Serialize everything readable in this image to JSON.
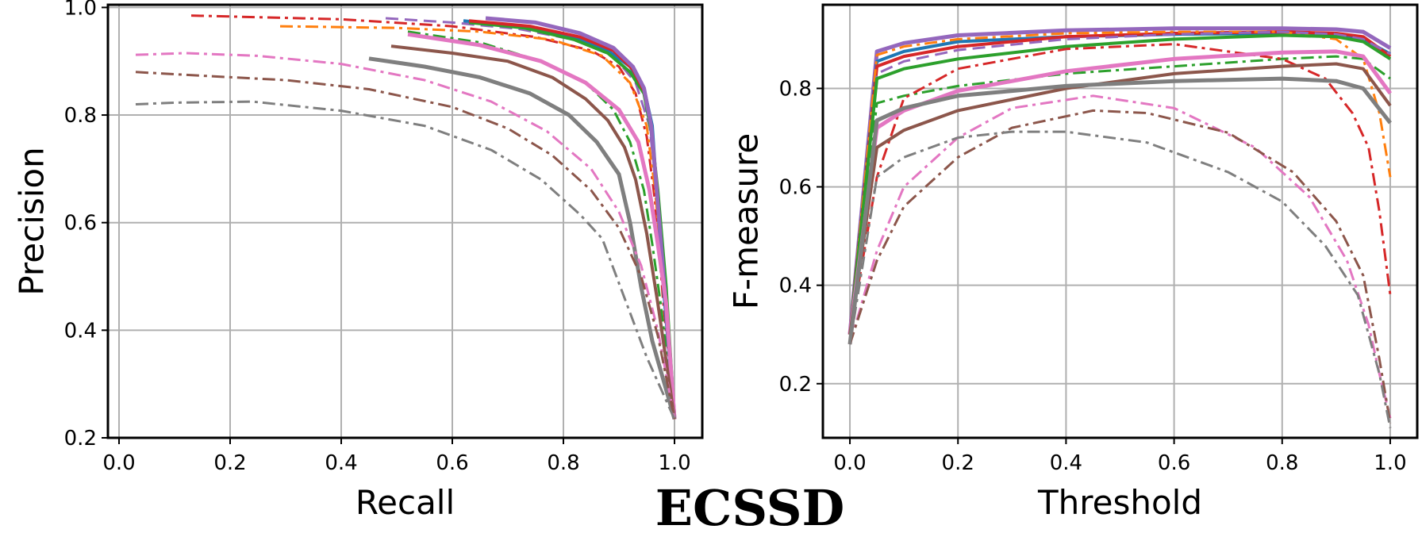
{
  "caption": "ECSSD",
  "chart_data": [
    {
      "type": "line",
      "xlabel": "Recall",
      "ylabel": "Precision",
      "xlim": [
        -0.02,
        1.05
      ],
      "ylim": [
        0.2,
        1.005
      ],
      "xticks": [
        0.0,
        0.2,
        0.4,
        0.6,
        0.8,
        1.0
      ],
      "xtick_labels": [
        "0.0",
        "0.2",
        "0.4",
        "0.6",
        "0.8",
        "1.0"
      ],
      "yticks": [
        0.2,
        0.4,
        0.6,
        0.8,
        1.0
      ],
      "ytick_labels": [
        "0.2",
        "0.4",
        "0.6",
        "0.8",
        "1.0"
      ],
      "grid": true,
      "series": [
        {
          "color": "#d62728",
          "dash": "dashdot",
          "width": 3,
          "x": [
            0.13,
            0.4,
            0.6,
            0.75,
            0.85,
            0.9,
            0.93,
            0.95,
            0.965,
            0.98,
            1.0
          ],
          "y": [
            0.985,
            0.978,
            0.965,
            0.945,
            0.92,
            0.89,
            0.84,
            0.76,
            0.64,
            0.45,
            0.235
          ]
        },
        {
          "color": "#ff7f0e",
          "dash": "dashdot",
          "width": 3,
          "x": [
            0.29,
            0.5,
            0.65,
            0.78,
            0.87,
            0.92,
            0.95,
            0.965,
            0.98,
            1.0
          ],
          "y": [
            0.965,
            0.962,
            0.955,
            0.94,
            0.91,
            0.86,
            0.78,
            0.66,
            0.48,
            0.235
          ]
        },
        {
          "color": "#9467bd",
          "dash": "dashed",
          "width": 3,
          "x": [
            0.48,
            0.6,
            0.72,
            0.82,
            0.89,
            0.93,
            0.955,
            0.97,
            0.985,
            1.0
          ],
          "y": [
            0.98,
            0.972,
            0.96,
            0.94,
            0.91,
            0.86,
            0.78,
            0.64,
            0.45,
            0.235
          ]
        },
        {
          "color": "#2ca02c",
          "dash": "dashdot",
          "width": 3,
          "x": [
            0.52,
            0.65,
            0.76,
            0.84,
            0.89,
            0.92,
            0.945,
            0.96,
            0.975,
            1.0
          ],
          "y": [
            0.955,
            0.935,
            0.9,
            0.86,
            0.81,
            0.75,
            0.66,
            0.56,
            0.45,
            0.235
          ]
        },
        {
          "color": "#1f77b4",
          "dash": "solid",
          "width": 4,
          "x": [
            0.62,
            0.72,
            0.82,
            0.88,
            0.92,
            0.945,
            0.96,
            0.968,
            0.98,
            1.0
          ],
          "y": [
            0.975,
            0.965,
            0.945,
            0.92,
            0.89,
            0.85,
            0.78,
            0.66,
            0.48,
            0.235
          ]
        },
        {
          "color": "#2ca02c",
          "dash": "solid",
          "width": 4,
          "x": [
            0.63,
            0.73,
            0.82,
            0.88,
            0.92,
            0.945,
            0.958,
            0.97,
            0.985,
            1.0
          ],
          "y": [
            0.972,
            0.962,
            0.94,
            0.915,
            0.88,
            0.84,
            0.77,
            0.66,
            0.48,
            0.235
          ]
        },
        {
          "color": "#d62728",
          "dash": "solid",
          "width": 4,
          "x": [
            0.63,
            0.74,
            0.83,
            0.89,
            0.925,
            0.945,
            0.958,
            0.968,
            0.98,
            1.0
          ],
          "y": [
            0.975,
            0.965,
            0.945,
            0.92,
            0.885,
            0.845,
            0.78,
            0.67,
            0.5,
            0.235
          ]
        },
        {
          "color": "#9467bd",
          "dash": "solid",
          "width": 5,
          "x": [
            0.66,
            0.75,
            0.83,
            0.89,
            0.925,
            0.945,
            0.958,
            0.968,
            0.982,
            1.0
          ],
          "y": [
            0.98,
            0.972,
            0.952,
            0.925,
            0.89,
            0.85,
            0.78,
            0.66,
            0.48,
            0.235
          ]
        },
        {
          "color": "#e377c2",
          "dash": "solid",
          "width": 5,
          "x": [
            0.52,
            0.65,
            0.76,
            0.84,
            0.9,
            0.935,
            0.955,
            0.97,
            0.985,
            1.0
          ],
          "y": [
            0.95,
            0.93,
            0.9,
            0.86,
            0.81,
            0.75,
            0.66,
            0.56,
            0.45,
            0.235
          ]
        },
        {
          "color": "#8c564b",
          "dash": "solid",
          "width": 4,
          "x": [
            0.49,
            0.6,
            0.7,
            0.78,
            0.84,
            0.88,
            0.91,
            0.93,
            0.95,
            0.97,
            1.0
          ],
          "y": [
            0.928,
            0.915,
            0.9,
            0.87,
            0.83,
            0.79,
            0.74,
            0.68,
            0.58,
            0.45,
            0.235
          ]
        },
        {
          "color": "#7f7f7f",
          "dash": "solid",
          "width": 5,
          "x": [
            0.45,
            0.55,
            0.65,
            0.74,
            0.81,
            0.86,
            0.9,
            0.92,
            0.94,
            0.96,
            1.0
          ],
          "y": [
            0.905,
            0.89,
            0.87,
            0.84,
            0.8,
            0.75,
            0.69,
            0.6,
            0.48,
            0.38,
            0.235
          ]
        },
        {
          "color": "#e377c2",
          "dash": "dashdot",
          "width": 3,
          "x": [
            0.03,
            0.12,
            0.25,
            0.4,
            0.55,
            0.67,
            0.77,
            0.85,
            0.9,
            0.94,
            0.97,
            1.0
          ],
          "y": [
            0.912,
            0.915,
            0.91,
            0.895,
            0.865,
            0.825,
            0.77,
            0.7,
            0.62,
            0.52,
            0.4,
            0.235
          ]
        },
        {
          "color": "#8c564b",
          "dash": "dashdot",
          "width": 3,
          "x": [
            0.03,
            0.15,
            0.3,
            0.45,
            0.6,
            0.7,
            0.78,
            0.85,
            0.9,
            0.94,
            0.97,
            1.0
          ],
          "y": [
            0.88,
            0.873,
            0.865,
            0.848,
            0.815,
            0.775,
            0.725,
            0.66,
            0.59,
            0.5,
            0.39,
            0.235
          ]
        },
        {
          "color": "#7f7f7f",
          "dash": "dashdot",
          "width": 3,
          "x": [
            0.03,
            0.1,
            0.24,
            0.4,
            0.55,
            0.67,
            0.76,
            0.83,
            0.87,
            0.91,
            0.95,
            1.0
          ],
          "y": [
            0.82,
            0.823,
            0.825,
            0.808,
            0.78,
            0.735,
            0.68,
            0.615,
            0.57,
            0.46,
            0.35,
            0.235
          ]
        }
      ]
    },
    {
      "type": "line",
      "xlabel": "Threshold",
      "ylabel": "F-measure",
      "xlim": [
        -0.05,
        1.05
      ],
      "ylim": [
        0.09,
        0.97
      ],
      "xticks": [
        0.0,
        0.2,
        0.4,
        0.6,
        0.8,
        1.0
      ],
      "xtick_labels": [
        "0.0",
        "0.2",
        "0.4",
        "0.6",
        "0.8",
        "1.0"
      ],
      "yticks": [
        0.2,
        0.4,
        0.6,
        0.8
      ],
      "ytick_labels": [
        "0.2",
        "0.4",
        "0.6",
        "0.8"
      ],
      "grid": true,
      "series": [
        {
          "color": "#9467bd",
          "dash": "solid",
          "width": 5,
          "x": [
            0.0,
            0.05,
            0.1,
            0.2,
            0.4,
            0.6,
            0.8,
            0.9,
            0.95,
            1.0
          ],
          "y": [
            0.3,
            0.875,
            0.892,
            0.908,
            0.918,
            0.922,
            0.922,
            0.92,
            0.915,
            0.882
          ]
        },
        {
          "color": "#1f77b4",
          "dash": "solid",
          "width": 4,
          "x": [
            0.0,
            0.05,
            0.1,
            0.2,
            0.4,
            0.6,
            0.8,
            0.9,
            0.95,
            1.0
          ],
          "y": [
            0.3,
            0.855,
            0.875,
            0.895,
            0.905,
            0.91,
            0.912,
            0.908,
            0.9,
            0.87
          ]
        },
        {
          "color": "#d62728",
          "dash": "solid",
          "width": 4,
          "x": [
            0.0,
            0.05,
            0.1,
            0.2,
            0.4,
            0.6,
            0.8,
            0.9,
            0.95,
            1.0
          ],
          "y": [
            0.3,
            0.845,
            0.865,
            0.885,
            0.905,
            0.912,
            0.915,
            0.912,
            0.905,
            0.865
          ]
        },
        {
          "color": "#ff7f0e",
          "dash": "dashdot",
          "width": 3,
          "x": [
            0.0,
            0.05,
            0.1,
            0.2,
            0.4,
            0.6,
            0.8,
            0.9,
            0.95,
            0.98,
            1.0
          ],
          "y": [
            0.3,
            0.868,
            0.885,
            0.9,
            0.912,
            0.915,
            0.915,
            0.9,
            0.86,
            0.75,
            0.62
          ]
        },
        {
          "color": "#9467bd",
          "dash": "dashed",
          "width": 3,
          "x": [
            0.0,
            0.05,
            0.1,
            0.2,
            0.4,
            0.6,
            0.8,
            0.9,
            0.95,
            1.0
          ],
          "y": [
            0.3,
            0.83,
            0.855,
            0.878,
            0.9,
            0.91,
            0.915,
            0.91,
            0.9,
            0.87
          ]
        },
        {
          "color": "#2ca02c",
          "dash": "solid",
          "width": 4,
          "x": [
            0.0,
            0.05,
            0.1,
            0.2,
            0.4,
            0.6,
            0.8,
            0.9,
            0.95,
            1.0
          ],
          "y": [
            0.3,
            0.82,
            0.84,
            0.86,
            0.885,
            0.9,
            0.908,
            0.905,
            0.895,
            0.86
          ]
        },
        {
          "color": "#2ca02c",
          "dash": "dashdot",
          "width": 3,
          "x": [
            0.0,
            0.05,
            0.1,
            0.2,
            0.4,
            0.6,
            0.8,
            0.9,
            0.95,
            1.0
          ],
          "y": [
            0.3,
            0.77,
            0.785,
            0.805,
            0.83,
            0.845,
            0.86,
            0.865,
            0.86,
            0.82
          ]
        },
        {
          "color": "#d62728",
          "dash": "dashdot",
          "width": 3,
          "x": [
            0.0,
            0.05,
            0.1,
            0.2,
            0.4,
            0.6,
            0.8,
            0.88,
            0.93,
            0.96,
            0.98,
            1.0
          ],
          "y": [
            0.3,
            0.62,
            0.78,
            0.84,
            0.88,
            0.89,
            0.86,
            0.82,
            0.75,
            0.68,
            0.55,
            0.38
          ]
        },
        {
          "color": "#e377c2",
          "dash": "solid",
          "width": 5,
          "x": [
            0.0,
            0.05,
            0.1,
            0.2,
            0.4,
            0.6,
            0.8,
            0.9,
            0.95,
            1.0
          ],
          "y": [
            0.3,
            0.72,
            0.755,
            0.795,
            0.835,
            0.86,
            0.873,
            0.875,
            0.865,
            0.79
          ]
        },
        {
          "color": "#8c564b",
          "dash": "solid",
          "width": 4,
          "x": [
            0.0,
            0.05,
            0.1,
            0.2,
            0.4,
            0.6,
            0.8,
            0.9,
            0.95,
            1.0
          ],
          "y": [
            0.3,
            0.68,
            0.715,
            0.755,
            0.8,
            0.83,
            0.845,
            0.85,
            0.84,
            0.765
          ]
        },
        {
          "color": "#7f7f7f",
          "dash": "solid",
          "width": 5,
          "x": [
            0.0,
            0.05,
            0.1,
            0.2,
            0.4,
            0.6,
            0.8,
            0.9,
            0.95,
            1.0
          ],
          "y": [
            0.28,
            0.735,
            0.76,
            0.785,
            0.805,
            0.815,
            0.82,
            0.815,
            0.8,
            0.73
          ]
        },
        {
          "color": "#e377c2",
          "dash": "dashdot",
          "width": 3,
          "x": [
            0.0,
            0.05,
            0.1,
            0.2,
            0.3,
            0.45,
            0.6,
            0.75,
            0.85,
            0.92,
            0.96,
            0.98,
            1.0
          ],
          "y": [
            0.28,
            0.47,
            0.6,
            0.7,
            0.76,
            0.785,
            0.76,
            0.68,
            0.58,
            0.45,
            0.32,
            0.22,
            0.13
          ]
        },
        {
          "color": "#8c564b",
          "dash": "dashdot",
          "width": 3,
          "x": [
            0.0,
            0.05,
            0.1,
            0.2,
            0.3,
            0.45,
            0.55,
            0.7,
            0.82,
            0.9,
            0.95,
            0.98,
            1.0
          ],
          "y": [
            0.28,
            0.45,
            0.56,
            0.66,
            0.72,
            0.755,
            0.75,
            0.71,
            0.63,
            0.53,
            0.42,
            0.25,
            0.12
          ]
        },
        {
          "color": "#7f7f7f",
          "dash": "dashdot",
          "width": 3,
          "x": [
            0.0,
            0.05,
            0.1,
            0.2,
            0.3,
            0.4,
            0.55,
            0.7,
            0.8,
            0.88,
            0.94,
            0.98,
            1.0
          ],
          "y": [
            0.28,
            0.62,
            0.66,
            0.7,
            0.712,
            0.712,
            0.69,
            0.63,
            0.57,
            0.48,
            0.38,
            0.22,
            0.11
          ]
        }
      ]
    }
  ]
}
